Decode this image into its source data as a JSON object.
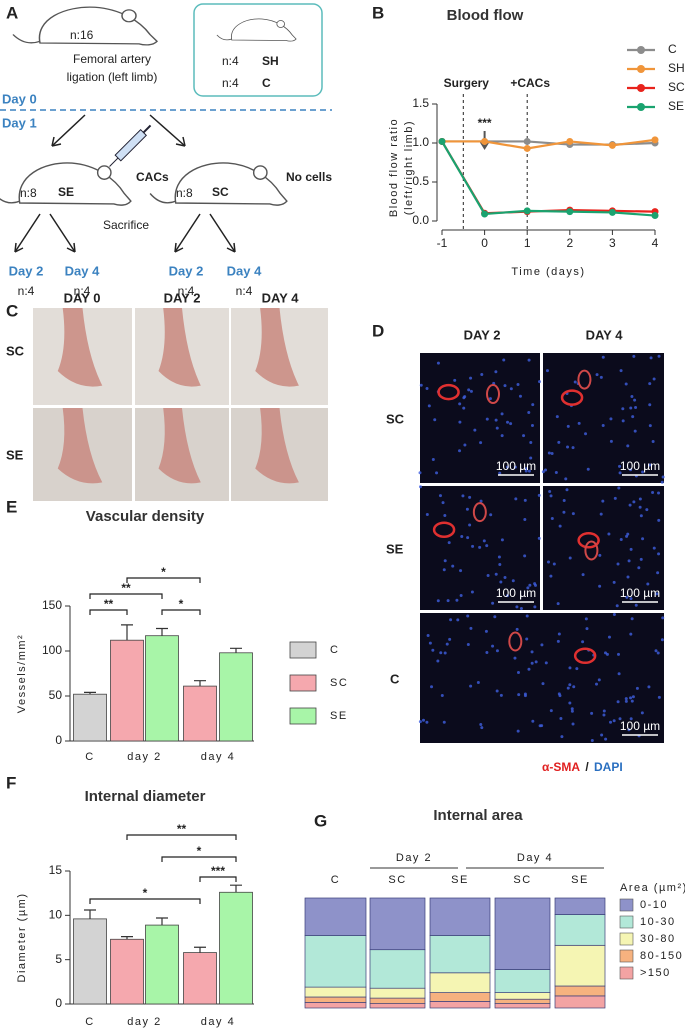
{
  "panel_labels": [
    "A",
    "B",
    "C",
    "D",
    "E",
    "F",
    "G"
  ],
  "diagram": {
    "total": "n:16",
    "procedure": [
      "Femoral artery",
      "ligation (left limb)"
    ],
    "controls": [
      {
        "n": "n:4",
        "group": "SH"
      },
      {
        "n": "n:4",
        "group": "C"
      }
    ],
    "days": [
      "Day 0",
      "Day 1"
    ],
    "treated": {
      "n": "n:8",
      "group": "SE",
      "treatment": "CACs"
    },
    "untreated": {
      "n": "n:8",
      "group": "SC",
      "treatment": "No cells"
    },
    "sacrifice": "Sacrifice",
    "endpoints": [
      {
        "day": "Day 2",
        "n": "n:4"
      },
      {
        "day": "Day 4",
        "n": "n:4"
      },
      {
        "day": "Day 2",
        "n": "n:4"
      },
      {
        "day": "Day 4",
        "n": "n:4"
      }
    ]
  },
  "photos": {
    "columns": [
      "DAY 0",
      "DAY 2",
      "DAY 4"
    ],
    "rows": [
      "SC",
      "SE"
    ]
  },
  "micrographs": {
    "columns": [
      "DAY 2",
      "DAY 4"
    ],
    "rows": [
      "SC",
      "SE",
      "C"
    ],
    "scale_bar": "100 µm",
    "legend": [
      "α-SMA",
      "/",
      "DAPI"
    ]
  },
  "chart_data": [
    {
      "type": "line",
      "title": "Blood flow",
      "xlabel": "Time (days)",
      "ylabel": [
        "Blood flow ratio",
        "(left/right limb)"
      ],
      "x": [
        -1,
        0,
        1,
        2,
        3,
        4
      ],
      "xlim": [
        -1,
        4
      ],
      "xticks": [
        -1,
        0,
        1,
        2,
        3,
        4
      ],
      "ylim": [
        0,
        1.5
      ],
      "yticks": [
        {
          "value": 0,
          "label": "0.0"
        },
        {
          "value": 0.5,
          "label": "0.5"
        },
        {
          "value": 1,
          "label": "1.0"
        },
        {
          "value": 1.5,
          "label": "1.5"
        }
      ],
      "series": [
        {
          "name": "C",
          "color": "#8c8c8c",
          "values": [
            1.02,
            1.02,
            1.02,
            0.98,
            0.98,
            1.0
          ]
        },
        {
          "name": "SH",
          "color": "#f0953a",
          "values": [
            1.02,
            1.02,
            0.93,
            1.02,
            0.97,
            1.04
          ]
        },
        {
          "name": "SC",
          "color": "#e8231c",
          "values": [
            1.02,
            0.1,
            0.12,
            0.14,
            0.13,
            0.12
          ]
        },
        {
          "name": "SE",
          "color": "#1aa36f",
          "values": [
            1.02,
            0.09,
            0.13,
            0.12,
            0.11,
            0.07
          ]
        }
      ],
      "annotations": [
        {
          "text": "Surgery",
          "x": -0.5
        },
        {
          "text": "+CACs",
          "x": 1
        },
        {
          "text": "***",
          "x": 0
        }
      ],
      "legend": "upper right"
    },
    {
      "type": "bar",
      "title": "Vascular density",
      "ylabel": "Vessels/mm²",
      "categories": [
        "C",
        "day 2",
        "day 4"
      ],
      "series": [
        {
          "name": "C",
          "color": "#d3d3d3",
          "values": [
            52,
            null,
            null
          ],
          "errors": [
            2,
            null,
            null
          ]
        },
        {
          "name": "SC",
          "color": "#f5a8ae",
          "values": [
            null,
            112,
            61
          ],
          "errors": [
            null,
            17,
            6
          ]
        },
        {
          "name": "SE",
          "color": "#a8f5a8",
          "values": [
            null,
            117,
            98
          ],
          "errors": [
            null,
            8,
            5
          ]
        }
      ],
      "ylim": [
        0,
        150
      ],
      "yticks": [
        0,
        50,
        100,
        150
      ],
      "significance": [
        "*",
        "**",
        "**",
        "*"
      ],
      "legend": "right"
    },
    {
      "type": "bar",
      "title": "Internal diameter",
      "ylabel": "Diameter (µm)",
      "categories": [
        "C",
        "day 2",
        "day 4"
      ],
      "series": [
        {
          "name": "C",
          "color": "#d3d3d3",
          "values": [
            9.6,
            null,
            null
          ],
          "errors": [
            1.0,
            null,
            null
          ]
        },
        {
          "name": "SC",
          "color": "#f5a8ae",
          "values": [
            null,
            7.3,
            5.8
          ],
          "errors": [
            null,
            0.3,
            0.6
          ]
        },
        {
          "name": "SE",
          "color": "#a8f5a8",
          "values": [
            null,
            8.9,
            12.6
          ],
          "errors": [
            null,
            0.8,
            0.8
          ]
        }
      ],
      "ylim": [
        0,
        15
      ],
      "yticks": [
        0,
        5,
        10,
        15
      ],
      "significance": [
        "**",
        "*",
        "***",
        "*"
      ]
    },
    {
      "type": "stacked_bar",
      "title": "Internal area",
      "categories": [
        "C",
        "SC",
        "SE",
        "SC",
        "SE"
      ],
      "groups": [
        "Day 2",
        "Day 4"
      ],
      "legend_title": "Area (µm²)",
      "ylim": [
        0,
        100
      ],
      "series": [
        {
          "name": "0-10",
          "color": "#8e92c9",
          "values": [
            34,
            47,
            34,
            65,
            15
          ]
        },
        {
          "name": "10-30",
          "color": "#b2e8d8",
          "values": [
            47,
            35,
            34,
            21,
            28
          ]
        },
        {
          "name": "30-80",
          "color": "#f5f5b3",
          "values": [
            9,
            9,
            18,
            6,
            37
          ]
        },
        {
          "name": "80-150",
          "color": "#f6b27f",
          "values": [
            5,
            5,
            8,
            4,
            9
          ]
        },
        {
          "name": ">150",
          "color": "#f3a3a3",
          "values": [
            5,
            4,
            6,
            4,
            11
          ]
        }
      ],
      "legend": "right"
    }
  ]
}
